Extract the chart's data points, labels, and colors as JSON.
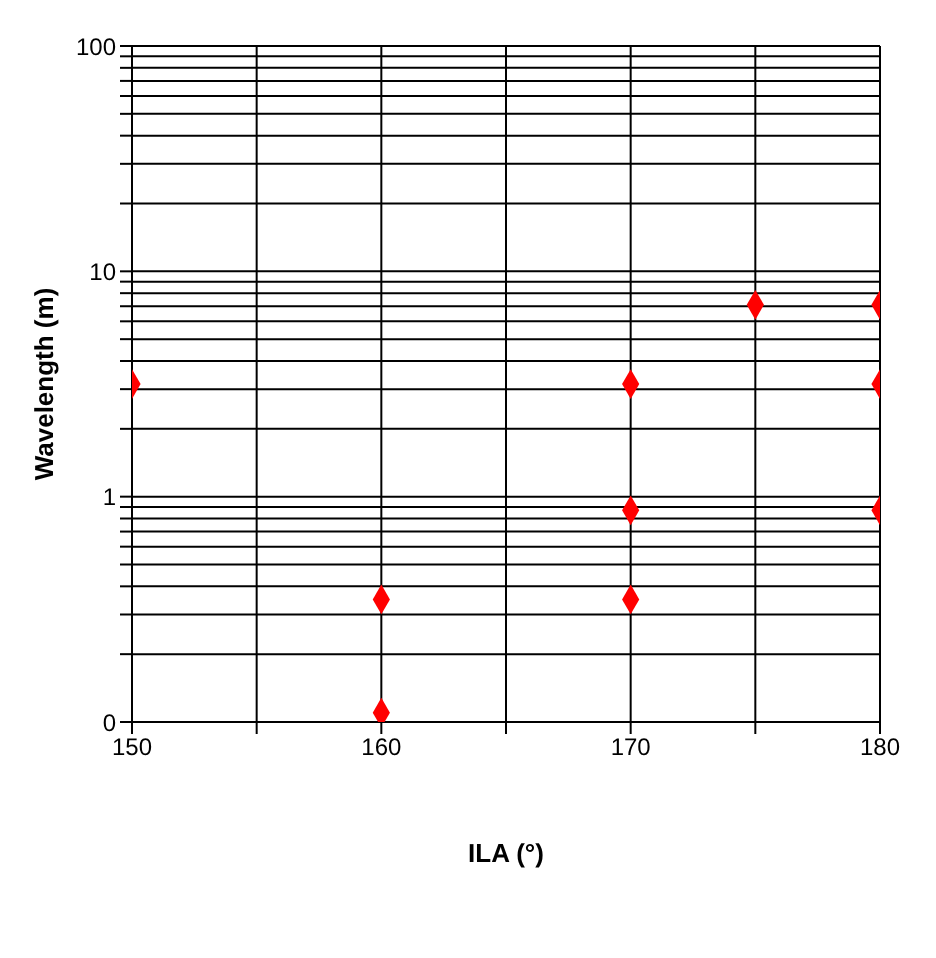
{
  "chart_data": {
    "type": "scatter",
    "xlabel": "ILA (°)",
    "ylabel": "Wavelength (m)",
    "x": [
      150,
      160,
      160,
      170,
      170,
      170,
      175,
      180,
      180,
      180
    ],
    "series": [
      {
        "color": "#ff0000",
        "values": [
          3.16,
          0.35,
          0.11,
          3.16,
          0.87,
          0.35,
          7.1,
          7.1,
          3.16,
          0.87
        ]
      }
    ],
    "xlim": [
      150,
      180
    ],
    "xticks": [
      150,
      {
        "value": 155,
        "label": null
      },
      160,
      {
        "value": 165,
        "label": null
      },
      170,
      {
        "value": 175,
        "label": null
      },
      180
    ],
    "ylim": [
      0.1,
      100
    ],
    "log": "y",
    "yticks": [
      {
        "value": 0.1,
        "label": "0"
      },
      {
        "value": 0.2,
        "label": null
      },
      {
        "value": 0.3,
        "label": null
      },
      {
        "value": 0.4,
        "label": null
      },
      {
        "value": 0.5,
        "label": null
      },
      {
        "value": 0.6,
        "label": null
      },
      {
        "value": 0.7,
        "label": null
      },
      {
        "value": 0.8,
        "label": null
      },
      {
        "value": 0.9,
        "label": null
      },
      1,
      {
        "value": 2,
        "label": null
      },
      {
        "value": 3,
        "label": null
      },
      {
        "value": 4,
        "label": null
      },
      {
        "value": 5,
        "label": null
      },
      {
        "value": 6,
        "label": null
      },
      {
        "value": 7,
        "label": null
      },
      {
        "value": 8,
        "label": null
      },
      {
        "value": 9,
        "label": null
      },
      10,
      {
        "value": 20,
        "label": null
      },
      {
        "value": 30,
        "label": null
      },
      {
        "value": 40,
        "label": null
      },
      {
        "value": 50,
        "label": null
      },
      {
        "value": 60,
        "label": null
      },
      {
        "value": 70,
        "label": null
      },
      {
        "value": 80,
        "label": null
      },
      {
        "value": 90,
        "label": null
      },
      100
    ],
    "grid": true,
    "marker": "diamond"
  }
}
